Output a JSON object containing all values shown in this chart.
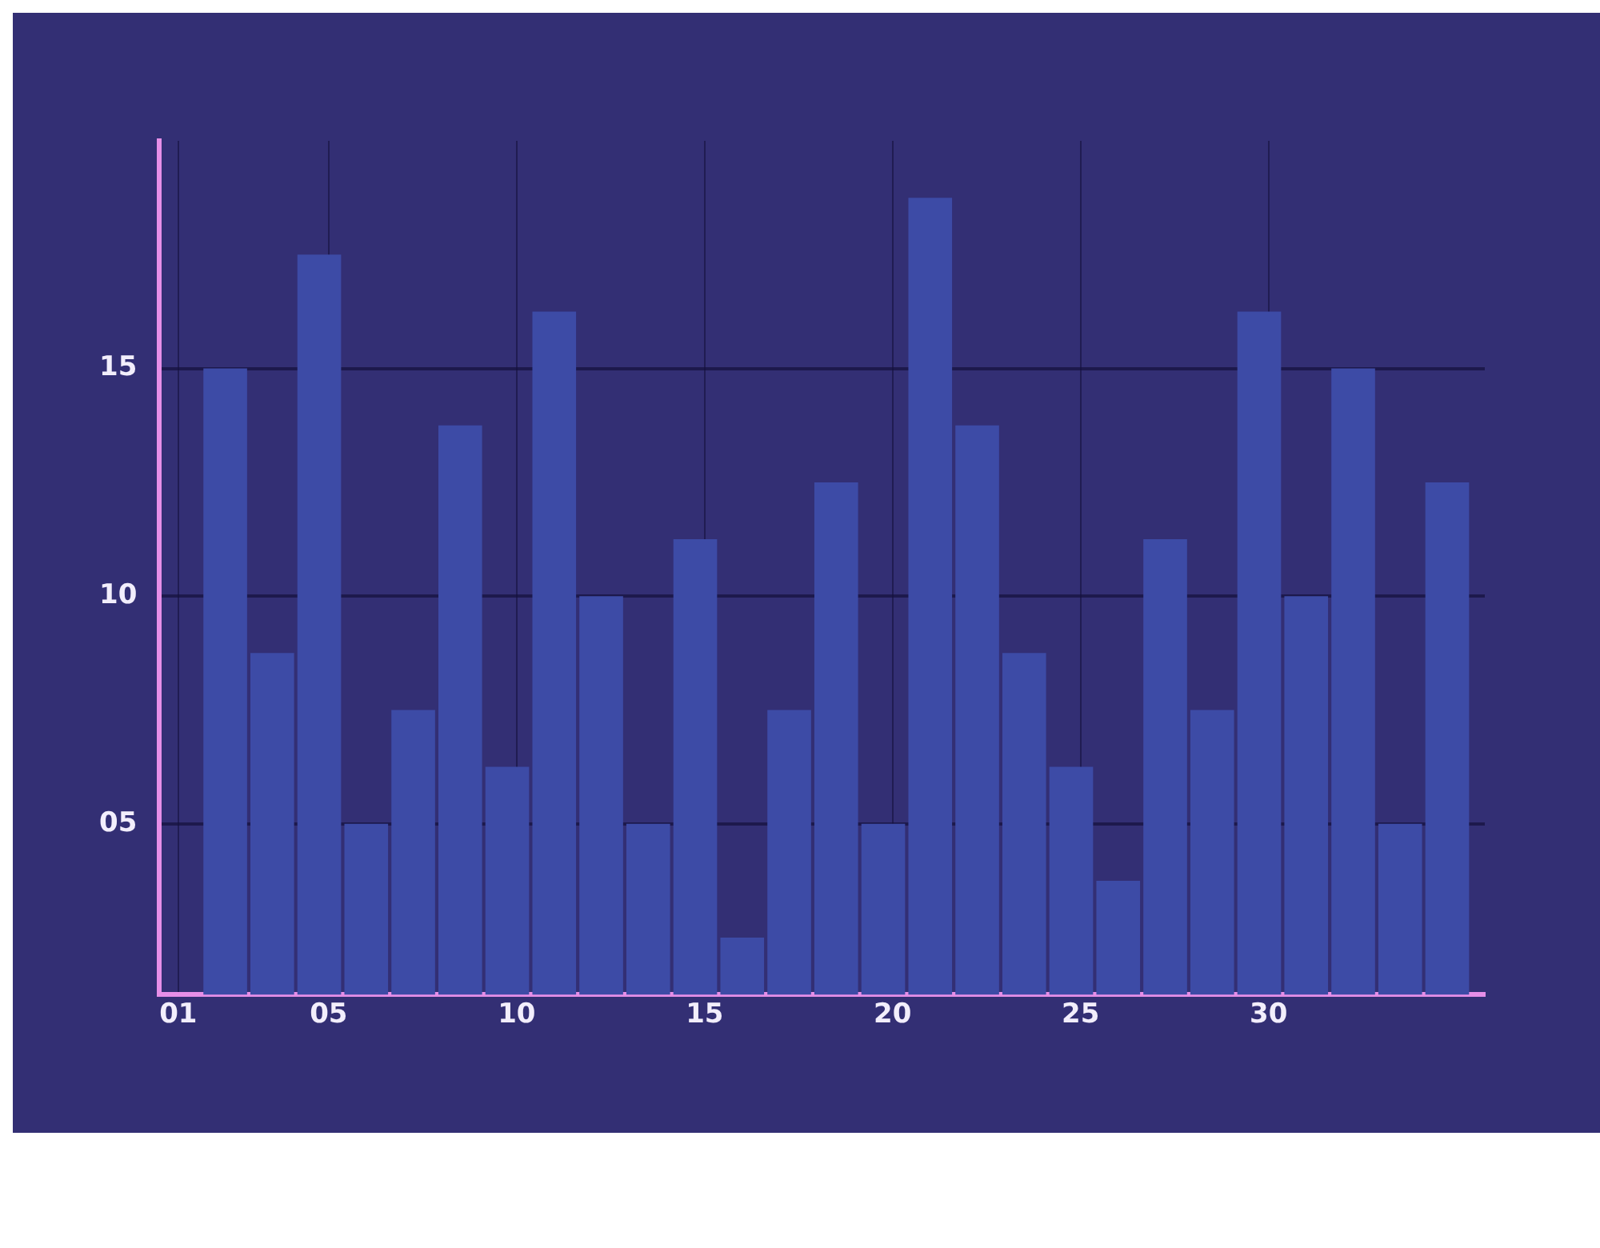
{
  "chart_data": {
    "type": "bar",
    "x": [
      2.25,
      3.5,
      4.75,
      6,
      7.25,
      8.5,
      9.75,
      11,
      12.25,
      13.5,
      14.75,
      16,
      17.25,
      18.5,
      19.75,
      21,
      22.25,
      23.5,
      24.75,
      26,
      27.25,
      28.5,
      29.75,
      31,
      32.25,
      33.5,
      34.75
    ],
    "values": [
      15,
      8.75,
      17.5,
      5,
      7.5,
      13.75,
      6.25,
      16.25,
      10,
      5,
      11.25,
      2.5,
      7.5,
      12.5,
      5,
      18.75,
      13.75,
      8.75,
      6.25,
      3.75,
      11.25,
      7.5,
      16.25,
      10,
      15,
      5,
      12.5
    ],
    "color": "#3d4ba6",
    "xlim": [
      0.5,
      35.75
    ],
    "xticks": [
      {
        "value": 1,
        "label": "01"
      },
      {
        "value": 5,
        "label": "05"
      },
      10,
      15,
      20,
      25,
      30
    ],
    "ylim": [
      1.25,
      20
    ],
    "yticks": [
      {
        "value": 5,
        "label": "05"
      },
      10,
      15
    ],
    "grid": true
  }
}
